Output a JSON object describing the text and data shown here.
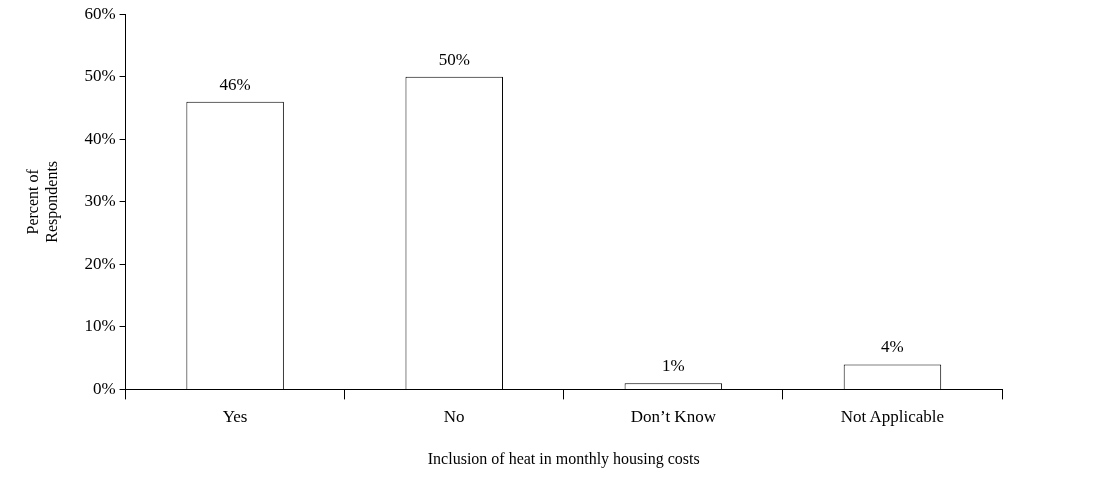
{
  "chart_data": {
    "type": "bar",
    "xlabel": "Inclusion of heat in monthly housing costs",
    "ylabel": "Percent of Respondents",
    "categories": [
      "Yes",
      "No",
      "Don’t Know",
      "Not Applicable"
    ],
    "values": [
      46,
      50,
      1,
      4
    ],
    "value_labels": [
      "46%",
      "50%",
      "1%",
      "4%"
    ],
    "color": "#ffffff",
    "ylim": [
      0,
      60
    ],
    "yticks": [
      {
        "value": 0,
        "label": "0%"
      },
      {
        "value": 10,
        "label": "10%"
      },
      {
        "value": 20,
        "label": "20%"
      },
      {
        "value": 30,
        "label": "30%"
      },
      {
        "value": 40,
        "label": "40%"
      },
      {
        "value": 50,
        "label": "50%"
      },
      {
        "value": 60,
        "label": "60%"
      }
    ],
    "grid": false,
    "legend": false
  }
}
